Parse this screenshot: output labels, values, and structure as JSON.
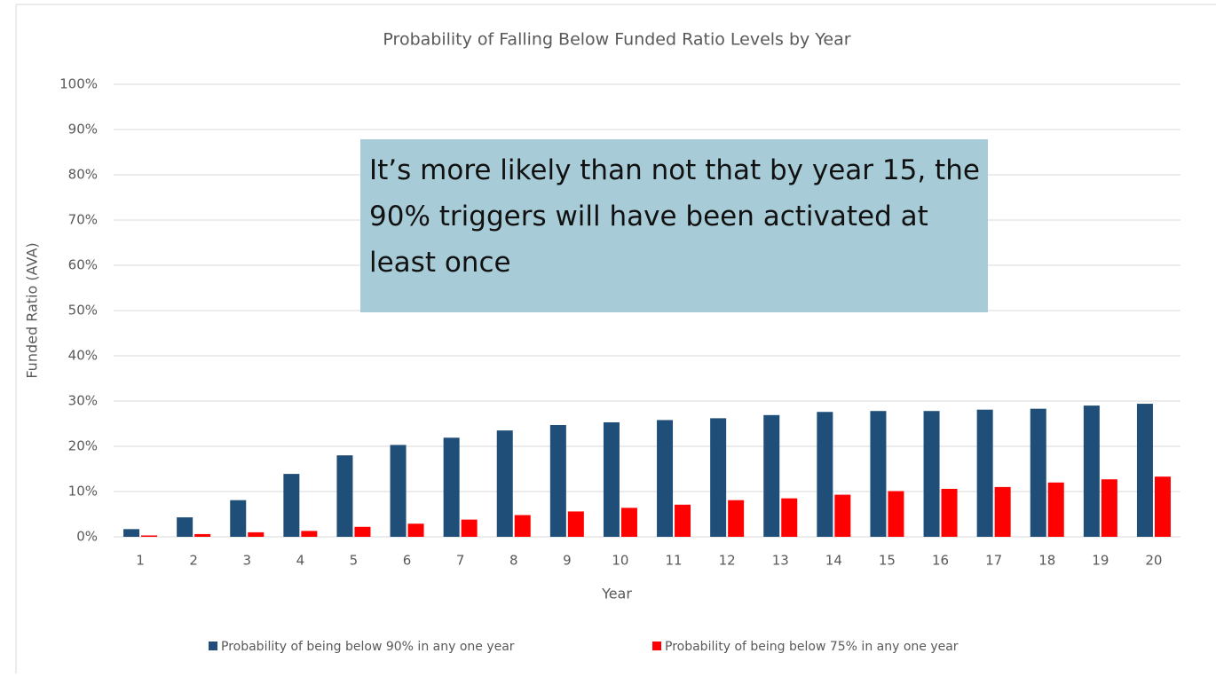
{
  "chart_data": {
    "type": "bar",
    "title": "Probability of Falling Below Funded Ratio Levels by Year",
    "x_label": "Year",
    "y_label": "Funded Ratio (AVA)",
    "annotation": "It’s more likely than not that by year 15, the 90% triggers will have been activated at least once",
    "categories": [
      "1",
      "2",
      "3",
      "4",
      "5",
      "6",
      "7",
      "8",
      "9",
      "10",
      "11",
      "12",
      "13",
      "14",
      "15",
      "16",
      "17",
      "18",
      "19",
      "20"
    ],
    "series": [
      {
        "name": "Probability of being below 90% in any one year",
        "color": "#1f4e79",
        "values": [
          1.7,
          4.3,
          8.1,
          13.9,
          18,
          20.3,
          21.9,
          23.5,
          24.7,
          25.3,
          25.8,
          26.2,
          26.9,
          27.6,
          27.8,
          27.8,
          28.1,
          28.3,
          29,
          29.4
        ]
      },
      {
        "name": "Probability of being below 75% in any one year",
        "color": "#ff0000",
        "values": [
          0.3,
          0.6,
          1,
          1.3,
          2.2,
          2.9,
          3.8,
          4.8,
          5.6,
          6.4,
          7.1,
          8.1,
          8.5,
          9.3,
          10.1,
          10.6,
          11,
          12,
          12.7,
          13.3
        ]
      }
    ],
    "ylim": [
      0,
      100
    ],
    "yticks": [
      {
        "value": 0,
        "label": "0%"
      },
      {
        "value": 10,
        "label": "10%"
      },
      {
        "value": 20,
        "label": "20%"
      },
      {
        "value": 30,
        "label": "30%"
      },
      {
        "value": 40,
        "label": "40%"
      },
      {
        "value": 50,
        "label": "50%"
      },
      {
        "value": 60,
        "label": "60%"
      },
      {
        "value": 70,
        "label": "70%"
      },
      {
        "value": 80,
        "label": "80%"
      },
      {
        "value": 90,
        "label": "90%"
      },
      {
        "value": 100,
        "label": "100%"
      }
    ],
    "grid": true,
    "legend": "bottom"
  }
}
